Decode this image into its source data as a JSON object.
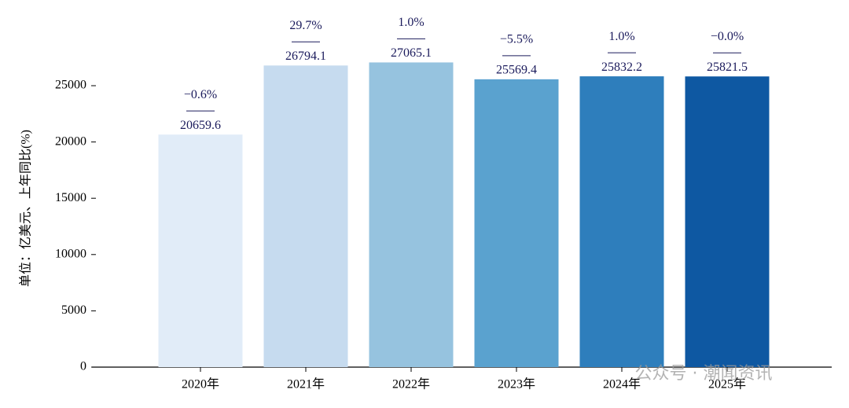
{
  "chart_data": {
    "type": "bar",
    "y_label": "单位：亿美元、上年同比(%)",
    "categories": [
      "2020年",
      "2021年",
      "2022年",
      "2023年",
      "2024年",
      "2025年"
    ],
    "values": [
      20659.6,
      26794.1,
      27065.1,
      25569.4,
      25832.2,
      25821.5
    ],
    "colors": [
      "#e1ecf8",
      "#c6dbef",
      "#96c3df",
      "#5aa2cf",
      "#2e7ebc",
      "#0e58a2"
    ],
    "growth": {
      "values": [
        -0.6,
        29.7,
        1.0,
        -5.5,
        1.0,
        -0.0
      ],
      "value_labels": [
        "−0.6%",
        "29.7%",
        "1.0%",
        "−5.5%",
        "1.0%",
        "−0.0%"
      ]
    },
    "ylim": [
      0,
      30000
    ],
    "yticks": [
      0,
      5000,
      10000,
      15000,
      20000,
      25000
    ],
    "watermark": "公众号 · 潮闻资讯"
  }
}
